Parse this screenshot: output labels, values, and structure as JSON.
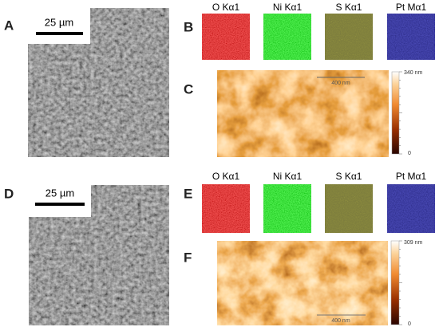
{
  "panels": {
    "A": {
      "label": "A",
      "scale_bar": "25 µm"
    },
    "B": {
      "label": "B",
      "maps": [
        "O Kα1",
        "Ni Kα1",
        "S Kα1",
        "Pt Mα1"
      ]
    },
    "C": {
      "label": "C",
      "scale_bar": "400 nm",
      "colorbar_max": "340 nm",
      "colorbar_min": "0"
    },
    "D": {
      "label": "D",
      "scale_bar": "25 µm"
    },
    "E": {
      "label": "E",
      "maps": [
        "O Kα1",
        "Ni Kα1",
        "S Kα1",
        "Pt Mα1"
      ]
    },
    "F": {
      "label": "F",
      "scale_bar": "400 nm",
      "colorbar_max": "309 nm",
      "colorbar_min": "0"
    }
  }
}
